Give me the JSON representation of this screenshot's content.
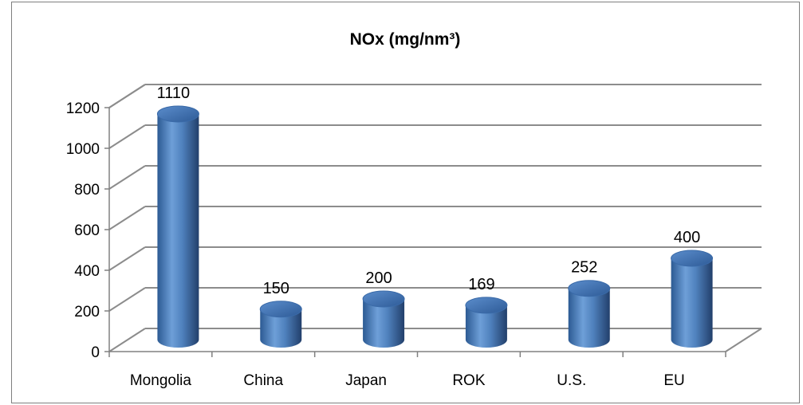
{
  "chart_data": {
    "type": "bar",
    "style": "3d-cylinder",
    "title": "NOx (mg/nm³)",
    "categories": [
      "Mongolia",
      "China",
      "Japan",
      "ROK",
      "U.S.",
      "EU"
    ],
    "values": [
      1110,
      150,
      200,
      169,
      252,
      400
    ],
    "data_labels": [
      "1110",
      "150",
      "200",
      "169",
      "252",
      "400"
    ],
    "ylim": [
      0,
      1200
    ],
    "yticks": [
      "0",
      "200",
      "400",
      "600",
      "800",
      "1000",
      "1200"
    ],
    "grid": true,
    "legend": "none",
    "bar_color": "#4f81bd"
  }
}
